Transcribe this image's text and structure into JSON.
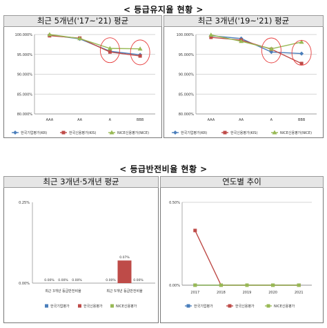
{
  "sections": {
    "top_title": "< 등급유지율 현황 >",
    "bottom_title": "< 등급반전비율 현황 >"
  },
  "colors": {
    "kr": "#4a7ebb",
    "kis": "#be4b48",
    "nice": "#98b954",
    "highlight": "#e63c3c"
  },
  "chart_data": [
    {
      "type": "line",
      "title": "최근 5개년('17~'21) 평균",
      "categories": [
        "AAA",
        "AA",
        "A",
        "BBB"
      ],
      "ylim": [
        80,
        100
      ],
      "yticks": [
        80,
        85,
        90,
        95,
        100
      ],
      "ytick_labels": [
        "80.000%",
        "85.000%",
        "90.000%",
        "95.000%",
        "100.000%"
      ],
      "series": [
        {
          "name": "한국기업평가(KR)",
          "color": "#4a7ebb",
          "marker": "diamond",
          "values": [
            99.9,
            98.9,
            95.8,
            94.9
          ]
        },
        {
          "name": "한국신용평가(KIS)",
          "color": "#be4b48",
          "marker": "square",
          "values": [
            99.7,
            99.1,
            95.6,
            94.6
          ]
        },
        {
          "name": "NICE신용평가(NICE)",
          "color": "#98b954",
          "marker": "triangle",
          "values": [
            100.0,
            99.0,
            96.5,
            96.4
          ]
        }
      ],
      "highlight_categories": [
        "A",
        "BBB"
      ]
    },
    {
      "type": "line",
      "title": "최근 3개년('19~'21) 평균",
      "categories": [
        "AAA",
        "AA",
        "A",
        "BBB"
      ],
      "ylim": [
        80,
        100
      ],
      "yticks": [
        80,
        85,
        90,
        95,
        100
      ],
      "ytick_labels": [
        "80.000%",
        "85.000%",
        "90.000%",
        "95.000%",
        "100.000%"
      ],
      "series": [
        {
          "name": "한국기업평가(KR)",
          "color": "#4a7ebb",
          "marker": "diamond",
          "values": [
            99.7,
            99.0,
            95.6,
            95.2
          ]
        },
        {
          "name": "한국신용평가(KIS)",
          "color": "#be4b48",
          "marker": "square",
          "values": [
            99.3,
            98.6,
            96.3,
            92.7
          ]
        },
        {
          "name": "NICE신용평가(NICE)",
          "color": "#98b954",
          "marker": "triangle",
          "values": [
            99.9,
            98.3,
            96.4,
            98.1
          ]
        }
      ],
      "highlight_categories": [
        "A",
        "BBB"
      ]
    },
    {
      "type": "bar",
      "title": "최근 3개년·5개년 평균",
      "categories": [
        "최근 3개년 등급반전비율",
        "최근 5개년 등급반전비율"
      ],
      "ylim": [
        0,
        0.25
      ],
      "yticks": [
        0,
        0.25
      ],
      "ytick_labels": [
        "0.00%",
        "0.25%"
      ],
      "series": [
        {
          "name": "한국기업평가",
          "color": "#4a7ebb",
          "values": [
            0.0,
            0.0
          ],
          "labels": [
            "0.00%",
            "0.00%"
          ]
        },
        {
          "name": "한국신용평가",
          "color": "#be4b48",
          "values": [
            0.0,
            0.07
          ],
          "labels": [
            "0.00%",
            "0.07%"
          ]
        },
        {
          "name": "NICE신용평가",
          "color": "#98b954",
          "values": [
            0.0,
            0.0
          ],
          "labels": [
            "0.00%",
            "0.00%"
          ]
        }
      ]
    },
    {
      "type": "line",
      "title": "연도별 추이",
      "categories": [
        "2017",
        "2018",
        "2019",
        "2020",
        "2021"
      ],
      "ylim": [
        0,
        0.5
      ],
      "yticks": [
        0,
        0.5
      ],
      "ytick_labels": [
        "0.00%",
        "0.50%"
      ],
      "series": [
        {
          "name": "한국기업평가",
          "color": "#4a7ebb",
          "marker": "square",
          "values": [
            0,
            0,
            0,
            0,
            0
          ]
        },
        {
          "name": "한국신용평가",
          "color": "#be4b48",
          "marker": "square",
          "values": [
            0.33,
            0,
            0,
            0,
            0
          ]
        },
        {
          "name": "NICE신용평가",
          "color": "#98b954",
          "marker": "square",
          "values": [
            0,
            0,
            0,
            0,
            0
          ]
        }
      ]
    }
  ]
}
